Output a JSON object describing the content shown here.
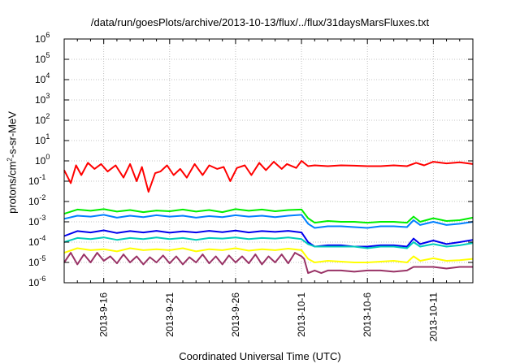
{
  "chart_data": {
    "type": "line",
    "title": "/data/run/goesPlots/archive/2013-10-13/flux/../flux/31daysMarsFluxes.txt",
    "xlabel": "Coordinated Universal Time (UTC)",
    "ylabel": {
      "prefix": "protons/cm",
      "sup": "2",
      "suffix": "-s-sr-MeV"
    },
    "yscale": "log",
    "ylim": [
      1e-06,
      1000000.0
    ],
    "y_ticks": [
      {
        "exp": "-6"
      },
      {
        "exp": "-5"
      },
      {
        "exp": "-4"
      },
      {
        "exp": "-3"
      },
      {
        "exp": "-2"
      },
      {
        "exp": "-1"
      },
      {
        "exp": "0"
      },
      {
        "exp": "1"
      },
      {
        "exp": "2"
      },
      {
        "exp": "3"
      },
      {
        "exp": "4"
      },
      {
        "exp": "5"
      },
      {
        "exp": "6"
      }
    ],
    "x_ticks": [
      "2013-9-16",
      "2013-9-21",
      "2013-9-26",
      "2013-10-1",
      "2013-10-6",
      "2013-10-11"
    ],
    "x_tick_days": [
      3,
      8,
      13,
      18,
      23,
      28
    ],
    "xlim_days": [
      0,
      31
    ],
    "x_note": "x values are days after 2013-9-13 00:00 UTC",
    "grid": true,
    "legend": "none",
    "series": [
      {
        "color": "#ff0000",
        "x": [
          0.0,
          0.5,
          0.9,
          1.3,
          1.8,
          2.3,
          2.8,
          3.3,
          3.9,
          4.5,
          5.0,
          5.5,
          5.9,
          6.4,
          6.9,
          7.3,
          7.8,
          8.3,
          8.8,
          9.3,
          9.9,
          10.5,
          11.0,
          11.6,
          12.1,
          12.6,
          13.1,
          13.7,
          14.2,
          14.8,
          15.3,
          15.9,
          16.5,
          16.9,
          17.6,
          18.0,
          18.5,
          19.0,
          20.0,
          21.0,
          22.0,
          23.0,
          24.0,
          25.0,
          26.0,
          26.7,
          27.3,
          28.0,
          29.0,
          30.0,
          31.0
        ],
        "y": [
          0.35,
          0.08,
          0.6,
          0.2,
          0.8,
          0.4,
          0.7,
          0.3,
          0.6,
          0.15,
          0.7,
          0.1,
          0.5,
          0.03,
          0.25,
          0.3,
          0.6,
          0.2,
          0.4,
          0.15,
          0.7,
          0.2,
          0.6,
          0.4,
          0.5,
          0.1,
          0.45,
          0.6,
          0.2,
          0.8,
          0.35,
          0.9,
          0.4,
          0.7,
          0.45,
          1.0,
          0.55,
          0.6,
          0.55,
          0.6,
          0.58,
          0.55,
          0.55,
          0.6,
          0.55,
          0.8,
          0.6,
          0.9,
          0.75,
          0.85,
          0.7
        ]
      },
      {
        "color": "#00ee00",
        "x": [
          0.0,
          1.0,
          2.0,
          3.0,
          4.0,
          5.0,
          6.0,
          7.0,
          8.0,
          9.0,
          10.0,
          11.0,
          12.0,
          13.0,
          14.0,
          15.0,
          16.0,
          17.0,
          18.0,
          18.5,
          19.0,
          20.0,
          21.0,
          22.0,
          23.0,
          24.0,
          25.0,
          26.0,
          26.5,
          27.0,
          28.0,
          29.0,
          30.0,
          31.0
        ],
        "y": [
          0.0025,
          0.004,
          0.0035,
          0.0042,
          0.0032,
          0.0038,
          0.003,
          0.0036,
          0.0033,
          0.004,
          0.0032,
          0.0038,
          0.003,
          0.0042,
          0.0035,
          0.004,
          0.0033,
          0.0038,
          0.004,
          0.0015,
          0.0009,
          0.0011,
          0.001,
          0.001,
          0.0009,
          0.001,
          0.001,
          0.0009,
          0.0018,
          0.001,
          0.0015,
          0.0011,
          0.0012,
          0.0016
        ]
      },
      {
        "color": "#0080ff",
        "x": [
          0.0,
          1.0,
          2.0,
          3.0,
          4.0,
          5.0,
          6.0,
          7.0,
          8.0,
          9.0,
          10.0,
          11.0,
          12.0,
          13.0,
          14.0,
          15.0,
          16.0,
          17.0,
          18.0,
          18.5,
          19.0,
          20.0,
          21.0,
          22.0,
          23.0,
          24.0,
          25.0,
          26.0,
          26.5,
          27.0,
          28.0,
          29.0,
          30.0,
          31.0
        ],
        "y": [
          0.0014,
          0.002,
          0.0018,
          0.0022,
          0.0016,
          0.002,
          0.0017,
          0.0021,
          0.0018,
          0.002,
          0.0016,
          0.0019,
          0.0017,
          0.0021,
          0.0018,
          0.002,
          0.0017,
          0.002,
          0.0022,
          0.0008,
          0.0005,
          0.0006,
          0.0006,
          0.00055,
          0.0005,
          0.0006,
          0.0006,
          0.00055,
          0.0012,
          0.0007,
          0.001,
          0.0007,
          0.0008,
          0.001
        ]
      },
      {
        "color": "#0000ee",
        "x": [
          0.0,
          1.0,
          2.0,
          3.0,
          4.0,
          5.0,
          6.0,
          7.0,
          8.0,
          9.0,
          10.0,
          11.0,
          12.0,
          13.0,
          14.0,
          15.0,
          16.0,
          17.0,
          18.0,
          18.5,
          19.0,
          20.0,
          21.0,
          22.0,
          23.0,
          24.0,
          25.0,
          26.0,
          26.5,
          27.0,
          28.0,
          29.0,
          30.0,
          31.0
        ],
        "y": [
          0.0002,
          0.00035,
          0.0003,
          0.00038,
          0.00028,
          0.00035,
          0.0003,
          0.00036,
          0.00029,
          0.00034,
          0.0003,
          0.00036,
          0.00031,
          0.00037,
          0.0003,
          0.00035,
          0.00032,
          0.00036,
          0.0003,
          0.0001,
          6e-05,
          7e-05,
          7e-05,
          6e-05,
          6e-05,
          7e-05,
          7e-05,
          6e-05,
          0.00015,
          8e-05,
          0.00012,
          8e-05,
          0.0001,
          0.00013
        ]
      },
      {
        "color": "#00ccbb",
        "x": [
          0.0,
          1.0,
          2.0,
          3.0,
          4.0,
          5.0,
          6.0,
          7.0,
          8.0,
          9.0,
          10.0,
          11.0,
          12.0,
          13.0,
          14.0,
          15.0,
          16.0,
          17.0,
          18.0,
          18.5,
          19.0,
          20.0,
          21.0,
          22.0,
          23.0,
          24.0,
          25.0,
          26.0,
          26.5,
          27.0,
          28.0,
          29.0,
          30.0,
          31.0
        ],
        "y": [
          0.0001,
          0.00016,
          0.00014,
          0.00017,
          0.00013,
          0.00016,
          0.00014,
          0.00017,
          0.00014,
          0.00016,
          0.00013,
          0.00016,
          0.00015,
          0.00017,
          0.00014,
          0.00016,
          0.00015,
          0.00017,
          0.00014,
          8e-05,
          6e-05,
          6e-05,
          6e-05,
          6e-05,
          5e-05,
          6e-05,
          6e-05,
          5e-05,
          0.0001,
          6e-05,
          8e-05,
          6e-05,
          7e-05,
          9e-05
        ]
      },
      {
        "color": "#ffff00",
        "x": [
          0.0,
          1.0,
          2.0,
          3.0,
          4.0,
          5.0,
          6.0,
          7.0,
          8.0,
          9.0,
          10.0,
          11.0,
          12.0,
          13.0,
          14.0,
          15.0,
          16.0,
          17.0,
          18.0,
          18.5,
          19.0,
          20.0,
          21.0,
          22.0,
          23.0,
          24.0,
          25.0,
          26.0,
          26.5,
          27.0,
          28.0,
          29.0,
          30.0,
          31.0
        ],
        "y": [
          3e-05,
          5e-05,
          4e-05,
          4.5e-05,
          3.5e-05,
          5e-05,
          4e-05,
          4.5e-05,
          4e-05,
          5e-05,
          3.5e-05,
          4.5e-05,
          4e-05,
          5e-05,
          3.8e-05,
          4.5e-05,
          4e-05,
          4.8e-05,
          4e-05,
          1.5e-05,
          1e-05,
          1.2e-05,
          1.1e-05,
          1e-05,
          1e-05,
          1.1e-05,
          1.2e-05,
          1e-05,
          2e-05,
          1.2e-05,
          1.6e-05,
          1.2e-05,
          1.3e-05,
          1.5e-05
        ]
      },
      {
        "color": "#993366",
        "x": [
          0.0,
          0.5,
          1.0,
          1.5,
          2.0,
          2.5,
          3.0,
          3.5,
          4.0,
          4.5,
          5.0,
          5.5,
          6.0,
          6.5,
          7.0,
          7.5,
          8.0,
          8.5,
          9.0,
          9.5,
          10.0,
          10.5,
          11.0,
          11.5,
          12.0,
          12.5,
          13.0,
          13.5,
          14.0,
          14.5,
          15.0,
          15.5,
          16.0,
          16.5,
          17.0,
          17.5,
          18.0,
          18.2,
          18.5,
          19.0,
          19.5,
          20.0,
          21.0,
          22.0,
          23.0,
          24.0,
          25.0,
          26.0,
          26.5,
          27.0,
          28.0,
          29.0,
          30.0,
          31.0
        ],
        "y": [
          1e-05,
          3e-05,
          8e-06,
          2.5e-05,
          1e-05,
          3e-05,
          1.2e-05,
          2e-05,
          9e-06,
          2.5e-05,
          1e-05,
          2e-05,
          8e-06,
          1.8e-05,
          1e-05,
          2.2e-05,
          9e-06,
          2e-05,
          8e-06,
          1.8e-05,
          1e-05,
          2.5e-05,
          9e-06,
          2e-05,
          8e-06,
          2.2e-05,
          1e-05,
          2e-05,
          9e-06,
          2.5e-05,
          8e-06,
          2e-05,
          1e-05,
          2.5e-05,
          9e-06,
          3e-05,
          2e-05,
          1.5e-05,
          3e-06,
          4e-06,
          3e-06,
          4e-06,
          4e-06,
          3.5e-06,
          4e-06,
          4e-06,
          3.5e-06,
          4e-06,
          6e-06,
          6e-06,
          6e-06,
          5e-06,
          6e-06,
          6e-06
        ]
      }
    ]
  }
}
